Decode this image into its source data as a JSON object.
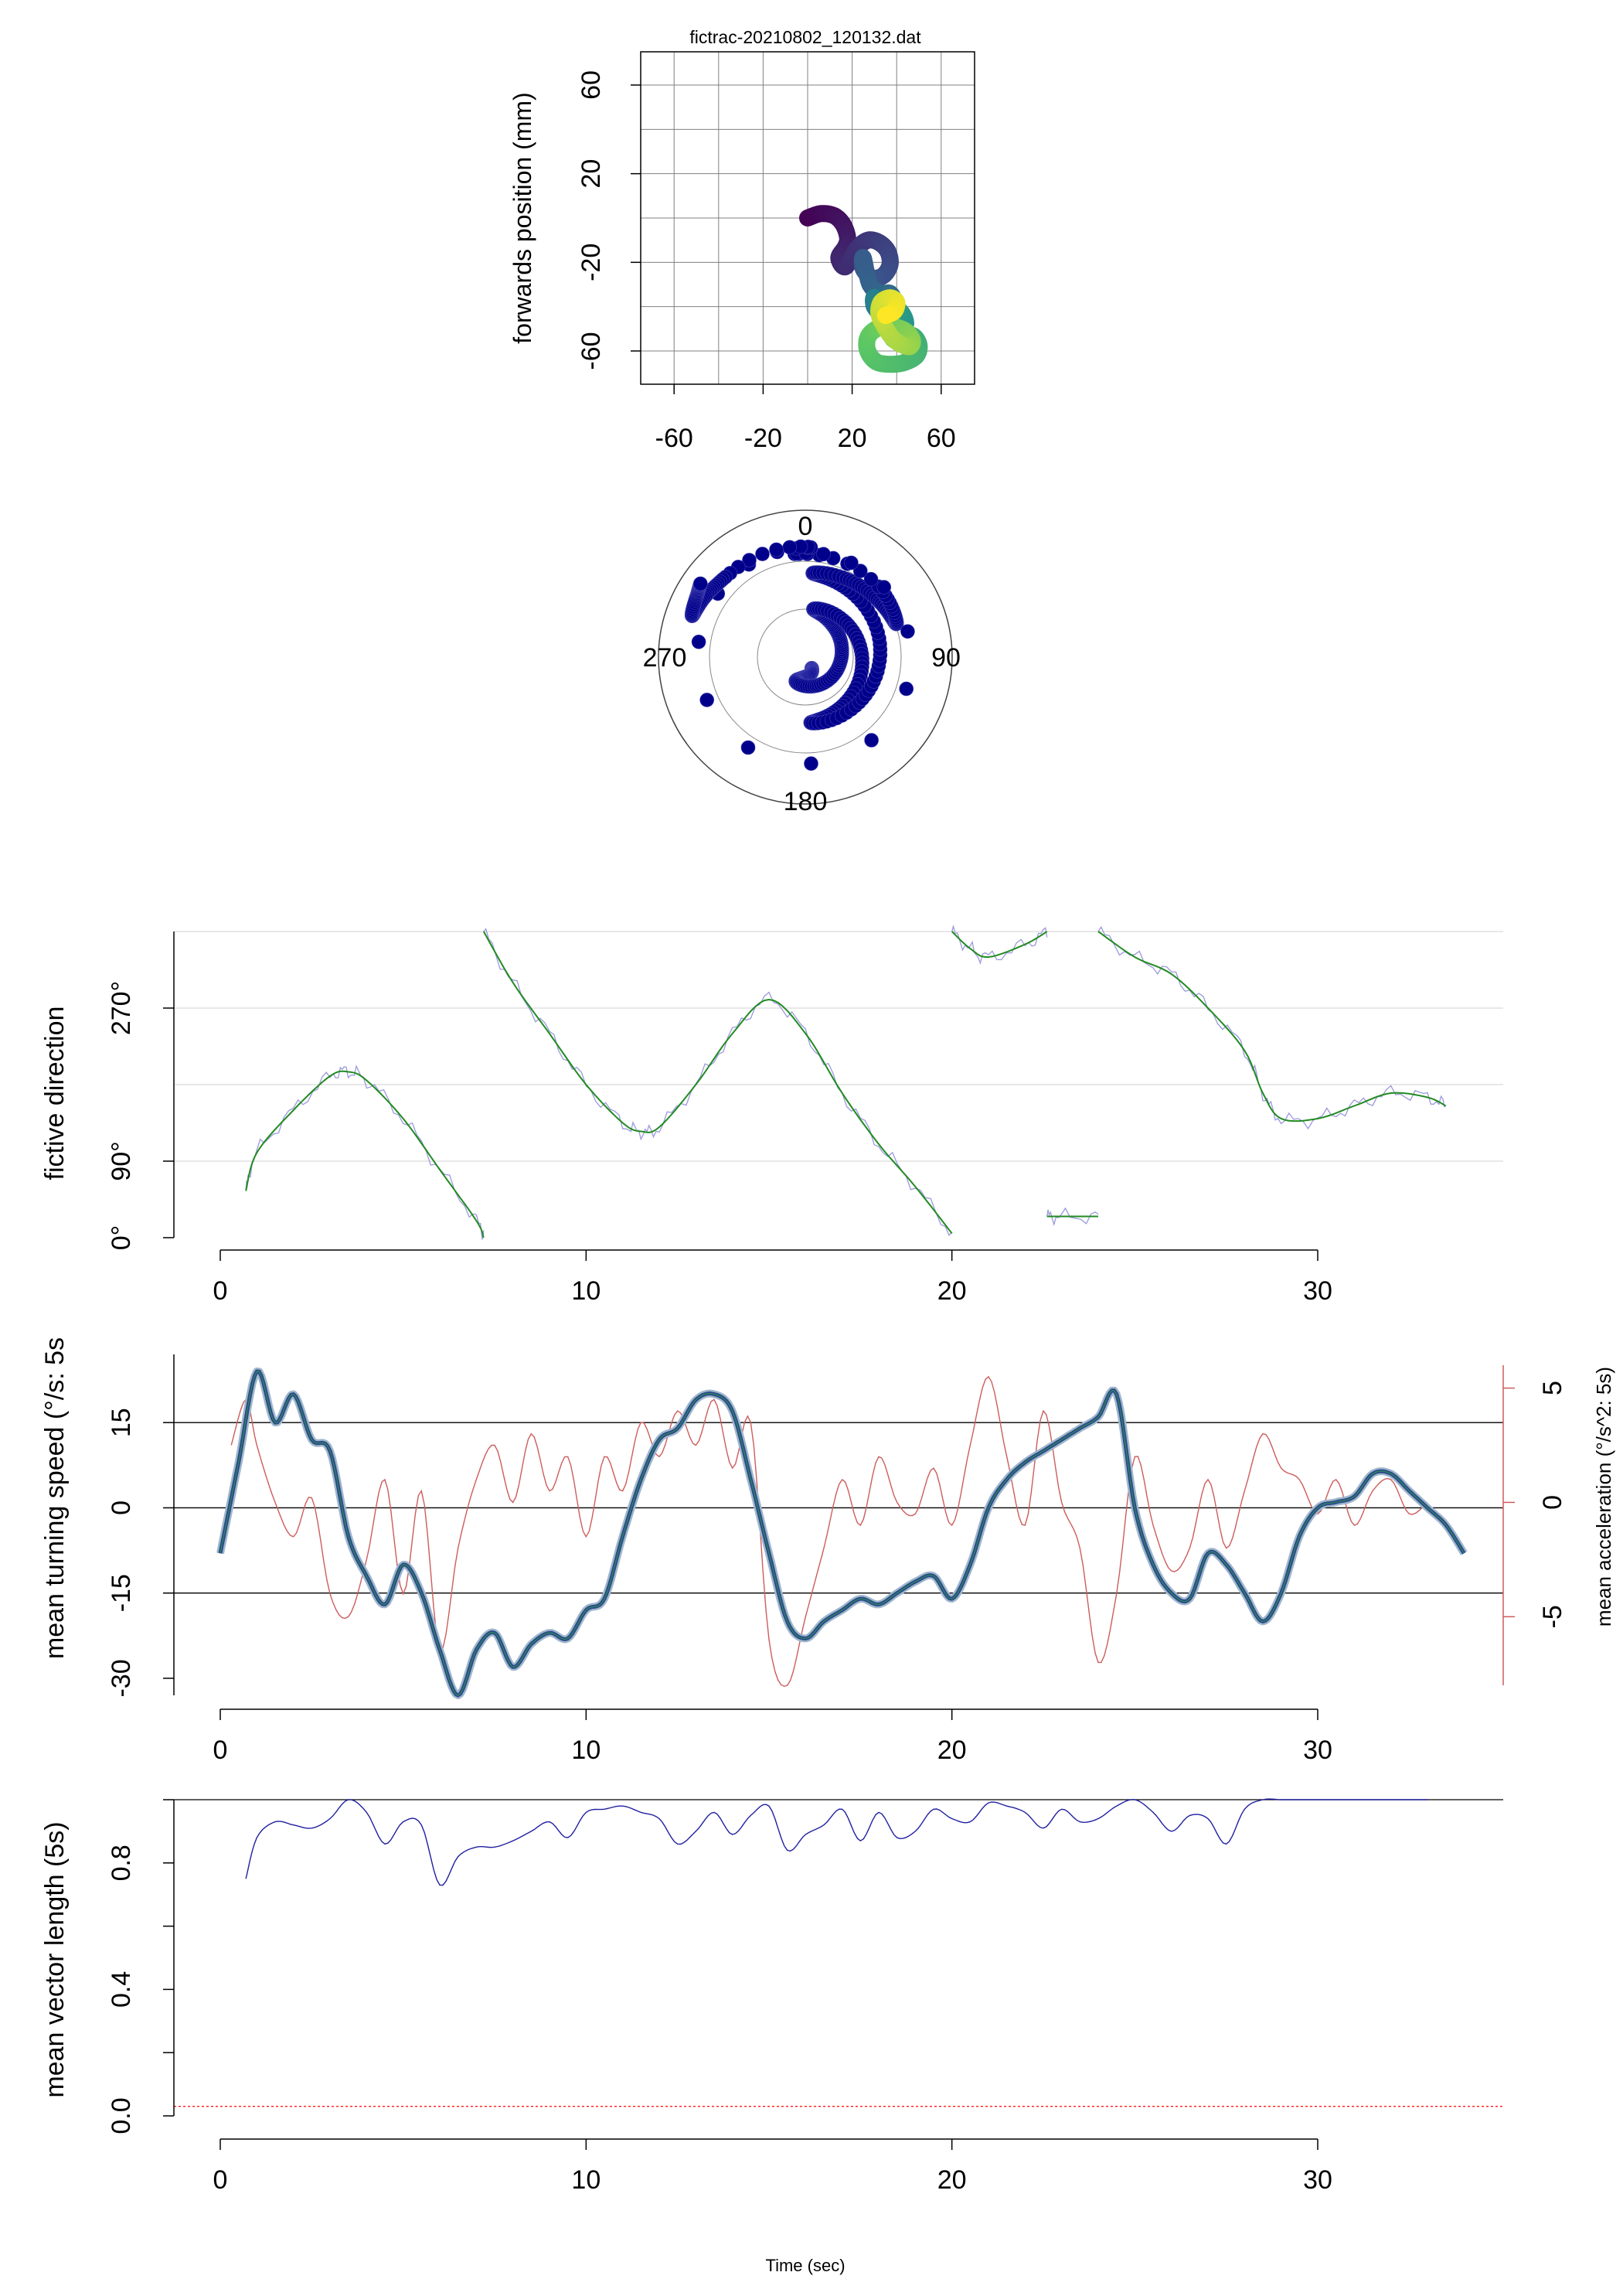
{
  "title": "fictrac-20210802_120132.dat",
  "footer_label": "Time (sec)",
  "colors": {
    "viridis": [
      "#440154",
      "#3b528b",
      "#21908c",
      "#5dc863",
      "#fde725"
    ],
    "polar_points": "#00008b",
    "direction_raw": "#9999dd",
    "direction_smooth": "#228b22",
    "speed_line": "#2b4a8a",
    "speed_halo": "#9fb6cc",
    "speed_inner": "#2e8b57",
    "accel": "#cd5c5c",
    "vector": "#2020a0",
    "threshold": "#ff0000"
  },
  "chart_data": [
    {
      "type": "scatter",
      "id": "trajectory",
      "title": "fictrac-20210802_120132.dat",
      "xlabel": "",
      "ylabel": "forwards position (mm)",
      "xlim": [
        -75,
        75
      ],
      "ylim": [
        -75,
        75
      ],
      "xticks": [
        "-60",
        "-20",
        "20",
        "60"
      ],
      "yticks": [
        "-60",
        "-20",
        "20",
        "60"
      ],
      "grid": true,
      "color_by": "time",
      "x": [
        0,
        6,
        12,
        16,
        18,
        17,
        14,
        17,
        22,
        27,
        32,
        36,
        37,
        34,
        29,
        25,
        25,
        28,
        33,
        37,
        39,
        38,
        34,
        30,
        30,
        33,
        38,
        42,
        44,
        43,
        40,
        38,
        38,
        42,
        47,
        50,
        49,
        44,
        38,
        31,
        27,
        27,
        31,
        38,
        44,
        47,
        46,
        42,
        38,
        34,
        32,
        33,
        37,
        40,
        39,
        35
      ],
      "y": [
        0,
        2,
        1,
        -3,
        -9,
        -13,
        -18,
        -22,
        -14,
        -10,
        -11,
        -15,
        -21,
        -26,
        -27,
        -23,
        -18,
        -30,
        -34,
        -34,
        -38,
        -43,
        -44,
        -40,
        -36,
        -45,
        -49,
        -50,
        -48,
        -44,
        -41,
        -45,
        -54,
        -55,
        -53,
        -57,
        -62,
        -65,
        -66,
        -65,
        -60,
        -54,
        -50,
        -49,
        -51,
        -55,
        -58,
        -57,
        -54,
        -48,
        -43,
        -38,
        -36,
        -38,
        -42,
        -44
      ]
    },
    {
      "type": "scatter",
      "id": "polar",
      "projection": "polar",
      "tick_labels": [
        "0",
        "90",
        "180",
        "270"
      ],
      "grid": true,
      "x": [
        0.0,
        1.2,
        2.4,
        3.7,
        4.9,
        6.1,
        7.3,
        8.6,
        9.8,
        11.0,
        12.2,
        13.5,
        14.7,
        15.9,
        17.1,
        18.4,
        19.6,
        20.8,
        22.0,
        23.3,
        24.5,
        25.7,
        26.9,
        28.2,
        29.4,
        30.6,
        31.8,
        33.1
      ],
      "angle_deg": [
        150,
        160,
        190,
        200,
        155,
        100,
        60,
        30,
        10,
        50,
        100,
        150,
        175,
        130,
        80,
        30,
        5,
        30,
        55,
        70,
        50,
        10,
        345,
        315,
        300,
        290,
        300,
        305
      ],
      "radius": [
        0.12,
        0.16,
        0.2,
        0.25,
        0.29,
        0.33,
        0.37,
        0.41,
        0.46,
        0.5,
        0.54,
        0.58,
        0.62,
        0.66,
        0.71,
        0.75,
        0.79,
        0.83,
        0.87,
        0.91,
        0.95,
        0.98,
        1.02,
        1.06,
        1.1,
        1.13,
        1.17,
        1.2
      ]
    },
    {
      "type": "line",
      "id": "direction",
      "xlabel": "",
      "ylabel": "fictive direction",
      "xlim": [
        -1.3,
        35
      ],
      "ylim": [
        0,
        360
      ],
      "xticks": [
        "0",
        "10",
        "20",
        "30"
      ],
      "yticks": [
        "0°",
        "90°",
        "270°"
      ],
      "series": [
        {
          "x": [
            0.7,
            1.0,
            2.0,
            3.0,
            3.5,
            4.0,
            5.0,
            6.0,
            7.0,
            7.2,
            7.2,
            8.0,
            9.0,
            10.0,
            11.0,
            11.5,
            12.0,
            13.0,
            14.0,
            15.0,
            16.0,
            17.0,
            18.0,
            19.0,
            20.0,
            20.0,
            20.5,
            21.0,
            22.0,
            22.6,
            22.6,
            23.0,
            24.0,
            24.0,
            25.0,
            26.0,
            27.0,
            28.0,
            28.5,
            29.0,
            30.0,
            31.0,
            32.0,
            33.0,
            33.5
          ],
          "y": [
            55,
            100,
            150,
            190,
            195,
            185,
            140,
            80,
            20,
            0,
            360,
            300,
            240,
            180,
            135,
            125,
            130,
            180,
            240,
            280,
            240,
            170,
            110,
            60,
            5,
            360,
            340,
            330,
            345,
            360,
            25,
            25,
            25,
            360,
            330,
            310,
            270,
            220,
            170,
            140,
            140,
            155,
            170,
            165,
            155
          ]
        }
      ]
    },
    {
      "type": "line",
      "id": "turning",
      "xlabel": "",
      "ylabel": "mean turning speed (°/s: 5s",
      "ylabel_right": "mean acceleration (°/s^2: 5s)",
      "xlim": [
        -1.3,
        35
      ],
      "ylim": [
        -33,
        27
      ],
      "ylim_right": [
        -8,
        6
      ],
      "xticks": [
        "0",
        "10",
        "20",
        "30"
      ],
      "yticks": [
        "-30",
        "-15",
        "0",
        "15"
      ],
      "yticks_right": [
        "-5",
        "0",
        "5"
      ],
      "hlines": [
        -15,
        0,
        15
      ],
      "series": [
        {
          "axis": "left",
          "x": [
            0.0,
            0.5,
            1.0,
            1.5,
            2.0,
            2.5,
            3.0,
            3.5,
            4.0,
            4.5,
            5.0,
            5.5,
            6.0,
            6.5,
            7.0,
            7.5,
            8.0,
            8.5,
            9.0,
            9.5,
            10.0,
            10.5,
            11.0,
            11.5,
            12.0,
            12.5,
            13.0,
            13.5,
            14.0,
            14.5,
            15.0,
            15.5,
            16.0,
            16.5,
            17.0,
            17.5,
            18.0,
            18.5,
            19.0,
            19.5,
            20.0,
            20.5,
            21.0,
            21.5,
            22.0,
            22.5,
            23.0,
            23.5,
            24.0,
            24.5,
            25.0,
            25.5,
            26.0,
            26.5,
            27.0,
            27.5,
            28.0,
            28.5,
            29.0,
            29.5,
            30.0,
            30.5,
            31.0,
            31.5,
            32.0,
            32.5,
            33.0,
            33.5,
            34.0
          ],
          "y": [
            -8,
            8,
            24,
            15,
            20,
            12,
            10,
            -5,
            -12,
            -17,
            -10,
            -15,
            -25,
            -33,
            -25,
            -22,
            -28,
            -24,
            -22,
            -23,
            -18,
            -16,
            -5,
            5,
            12,
            14,
            19,
            20,
            17,
            5,
            -8,
            -20,
            -23,
            -20,
            -18,
            -16,
            -17,
            -15,
            -13,
            -12,
            -16,
            -10,
            0,
            5,
            8,
            10,
            12,
            14,
            16,
            20,
            0,
            -10,
            -15,
            -16,
            -8,
            -10,
            -15,
            -20,
            -15,
            -5,
            0,
            1,
            2,
            6,
            6,
            3,
            0,
            -3,
            -8
          ]
        },
        {
          "axis": "right",
          "x": [
            0.3,
            0.7,
            1.0,
            1.5,
            2.0,
            2.5,
            3.0,
            3.5,
            4.0,
            4.5,
            5.0,
            5.5,
            6.0,
            6.5,
            7.0,
            7.5,
            8.0,
            8.5,
            9.0,
            9.5,
            10.0,
            10.5,
            11.0,
            11.5,
            12.0,
            12.5,
            13.0,
            13.5,
            14.0,
            14.5,
            15.0,
            15.5,
            16.0,
            16.5,
            17.0,
            17.5,
            18.0,
            18.5,
            19.0,
            19.5,
            20.0,
            20.5,
            21.0,
            21.5,
            22.0,
            22.5,
            23.0,
            23.5,
            24.0,
            24.5,
            25.0,
            25.5,
            26.0,
            26.5,
            27.0,
            27.5,
            28.0,
            28.5,
            29.0,
            29.5,
            30.0,
            30.5,
            31.0,
            31.5,
            32.0,
            32.5,
            33.0
          ],
          "y": [
            2.5,
            4.5,
            2.5,
            0.0,
            -1.5,
            0.2,
            -4.0,
            -5.0,
            -2.5,
            1.0,
            -4.0,
            0.5,
            -6.5,
            -2.0,
            1.0,
            2.5,
            0.0,
            3.0,
            0.5,
            2.0,
            -1.5,
            2.0,
            0.5,
            3.5,
            2.0,
            4.0,
            2.5,
            4.5,
            1.5,
            3.5,
            -6.0,
            -8.0,
            -5.0,
            -2.0,
            1.0,
            -1.0,
            2.0,
            0.0,
            -0.5,
            1.5,
            -1.0,
            2.5,
            5.5,
            2.0,
            -1.0,
            4.0,
            0.0,
            -2.0,
            -7.0,
            -4.0,
            2.0,
            -1.0,
            -3.0,
            -2.0,
            1.0,
            -2.0,
            0.5,
            3.0,
            1.5,
            1.0,
            -0.5,
            1.0,
            -1.0,
            0.5,
            1.0,
            -0.5,
            0.0
          ]
        }
      ]
    },
    {
      "type": "line",
      "id": "vector",
      "xlabel": "Time (sec)",
      "ylabel": "mean vector length (5s)",
      "xlim": [
        -1.3,
        35
      ],
      "ylim": [
        0,
        1
      ],
      "xticks": [
        "0",
        "10",
        "20",
        "30"
      ],
      "yticks": [
        "0.0",
        "0.4",
        "0.8"
      ],
      "hlines": [
        1.0
      ],
      "threshold": 0.03,
      "series": [
        {
          "x": [
            0.7,
            1.0,
            1.5,
            2.0,
            2.5,
            3.0,
            3.5,
            4.0,
            4.5,
            5.0,
            5.5,
            6.0,
            6.5,
            7.0,
            7.5,
            8.0,
            8.5,
            9.0,
            9.5,
            10.0,
            10.5,
            11.0,
            11.5,
            12.0,
            12.5,
            13.0,
            13.5,
            14.0,
            14.5,
            15.0,
            15.5,
            16.0,
            16.5,
            17.0,
            17.5,
            18.0,
            18.5,
            19.0,
            19.5,
            20.0,
            20.5,
            21.0,
            21.5,
            22.0,
            22.5,
            23.0,
            23.5,
            24.0,
            24.5,
            25.0,
            25.5,
            26.0,
            26.5,
            27.0,
            27.5,
            28.0,
            28.5,
            29.0,
            29.5,
            30.0,
            30.5,
            31.0,
            31.5,
            32.0,
            32.5,
            33.0
          ],
          "y": [
            0.75,
            0.88,
            0.93,
            0.92,
            0.91,
            0.94,
            1.0,
            0.96,
            0.86,
            0.93,
            0.92,
            0.73,
            0.82,
            0.85,
            0.85,
            0.87,
            0.9,
            0.93,
            0.88,
            0.96,
            0.97,
            0.98,
            0.96,
            0.94,
            0.86,
            0.9,
            0.96,
            0.89,
            0.95,
            0.98,
            0.84,
            0.89,
            0.92,
            0.97,
            0.87,
            0.96,
            0.88,
            0.9,
            0.97,
            0.94,
            0.93,
            0.99,
            0.98,
            0.96,
            0.91,
            0.97,
            0.93,
            0.94,
            0.98,
            1.0,
            0.96,
            0.9,
            0.95,
            0.94,
            0.86,
            0.97,
            1.0,
            1.0,
            1.0,
            1.0,
            1.0,
            1.0,
            1.0,
            1.0,
            1.0,
            1.0
          ]
        }
      ]
    }
  ]
}
